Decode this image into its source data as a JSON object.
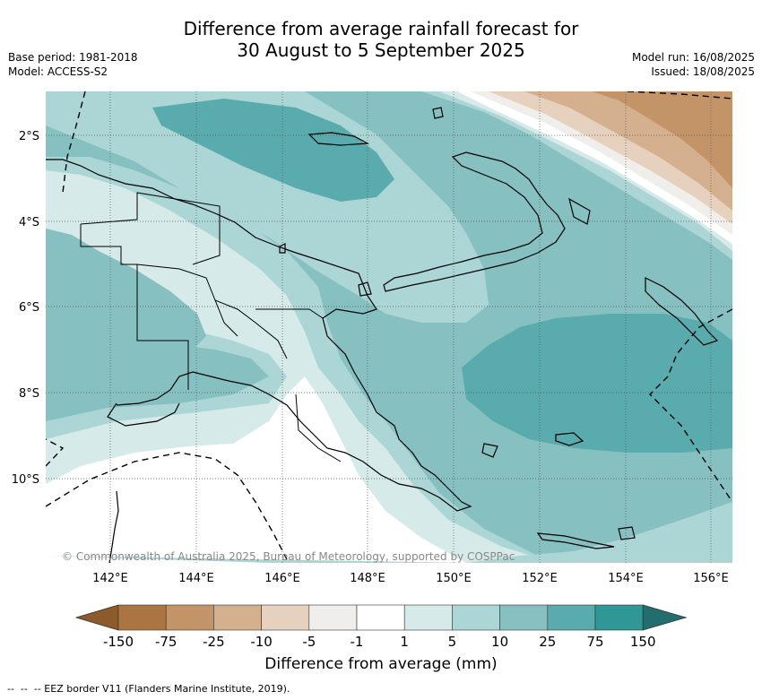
{
  "title": {
    "line1": "Difference from average rainfall forecast for",
    "line2": "30 August to 5 September 2025"
  },
  "meta_left": {
    "base_period": "Base period: 1981-2018",
    "model": "Model: ACCESS-S2"
  },
  "meta_right": {
    "model_run": "Model run: 16/08/2025",
    "issued": "Issued: 18/08/2025"
  },
  "map": {
    "region": "Papua New Guinea",
    "lon_labels": [
      "142°E",
      "144°E",
      "146°E",
      "148°E",
      "150°E",
      "152°E",
      "154°E",
      "156°E"
    ],
    "lat_labels": [
      "2°S",
      "4°S",
      "6°S",
      "8°S",
      "10°S"
    ],
    "lon_range": [
      140.5,
      156.5
    ],
    "lat_range": [
      -1.0,
      -12.0
    ],
    "copyright": "© Commonwealth of Australia 2025, Bureau of Meteorology, supported by COSPPac"
  },
  "colorbar": {
    "title": "Difference from average (mm)",
    "tick_labels": [
      "-150",
      "-75",
      "-25",
      "-10",
      "-5",
      "-1",
      "1",
      "5",
      "10",
      "25",
      "75",
      "150"
    ],
    "colors": [
      "#8c5a2b",
      "#ab7542",
      "#c29467",
      "#d4b08f",
      "#e6d1bf",
      "#f0eeea",
      "#ffffff",
      "#d5eae9",
      "#acd6d6",
      "#86c0c1",
      "#5aabad",
      "#2f9796",
      "#226e6f"
    ]
  },
  "footnote": "-- EEZ border V11 (Flanders Marine Institute, 2019)."
}
